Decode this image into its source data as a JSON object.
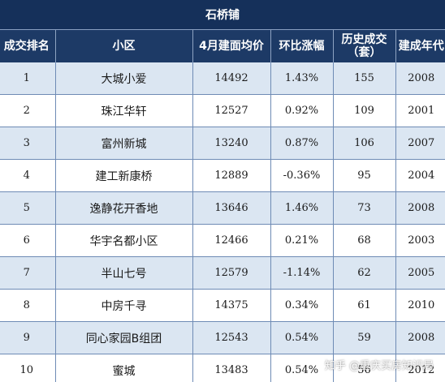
{
  "table": {
    "title": "石桥铺",
    "headers": [
      "成交排名",
      "小区",
      "4月建面均价",
      "环比涨幅",
      "历史成交\n（套）",
      "建成年代"
    ],
    "rows": [
      {
        "rank": "1",
        "name": "大城小爱",
        "price": "14492",
        "change": "1.43%",
        "deals": "155",
        "year": "2008"
      },
      {
        "rank": "2",
        "name": "珠江华轩",
        "price": "12527",
        "change": "0.92%",
        "deals": "109",
        "year": "2001"
      },
      {
        "rank": "3",
        "name": "富州新城",
        "price": "13240",
        "change": "0.87%",
        "deals": "106",
        "year": "2007"
      },
      {
        "rank": "4",
        "name": "建工新康桥",
        "price": "12889",
        "change": "-0.36%",
        "deals": "95",
        "year": "2004"
      },
      {
        "rank": "5",
        "name": "逸静花开香地",
        "price": "13646",
        "change": "1.46%",
        "deals": "73",
        "year": "2008"
      },
      {
        "rank": "6",
        "name": "华宇名都小区",
        "price": "12466",
        "change": "0.21%",
        "deals": "68",
        "year": "2003"
      },
      {
        "rank": "7",
        "name": "半山七号",
        "price": "12579",
        "change": "-1.14%",
        "deals": "62",
        "year": "2005"
      },
      {
        "rank": "8",
        "name": "中房千寻",
        "price": "14375",
        "change": "0.34%",
        "deals": "61",
        "year": "2010"
      },
      {
        "rank": "9",
        "name": "同心家园B组团",
        "price": "12543",
        "change": "0.54%",
        "deals": "59",
        "year": "2008"
      },
      {
        "rank": "10",
        "name": "蜜城",
        "price": "13483",
        "change": "0.54%",
        "deals": "56",
        "year": "2012"
      }
    ]
  },
  "watermark": "知乎 @重庆买房知识局",
  "colors": {
    "header_bg": "#1d3a66",
    "title_bg": "#15305a",
    "row_alt": "#dbe6f2",
    "grid": "#6e8bb5"
  }
}
